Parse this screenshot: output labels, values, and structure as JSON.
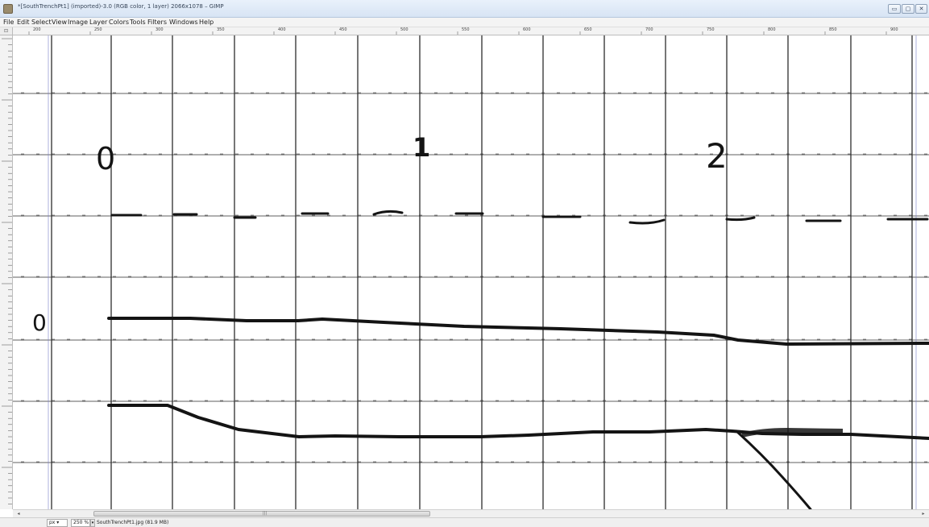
{
  "window": {
    "title": "*[SouthTrenchPt1] (imported)-3.0 (RGB color, 1 layer) 2066x1078 – GIMP",
    "min_label": "▭",
    "max_label": "▢",
    "close_label": "✕"
  },
  "menu": [
    "File",
    "Edit",
    "Select",
    "View",
    "Image",
    "Layer",
    "Colors",
    "Tools",
    "Filters",
    "Windows",
    "Help"
  ],
  "ruler": {
    "corner": "⊡",
    "labels": [
      "200",
      "250",
      "300",
      "350",
      "400",
      "450",
      "500",
      "550",
      "600",
      "650",
      "700",
      "750",
      "800",
      "850",
      "900"
    ]
  },
  "drawing": {
    "digit_zero_top": "0",
    "digit_one": "1",
    "digit_two": "2",
    "digit_zero_left": "0"
  },
  "status": {
    "unit": "px ▾",
    "zoom": "250 %",
    "zoom_dropdown": "▾",
    "file_info": "SouthTrenchPt1.jpg (81.9 MB)"
  },
  "scroll": {
    "left_arrow": "◂",
    "right_arrow": "▸",
    "grip": "|||"
  },
  "colors": {
    "grid": "#2a2a2a",
    "ink": "#141414",
    "accent_blue": "#7a7fc8"
  }
}
